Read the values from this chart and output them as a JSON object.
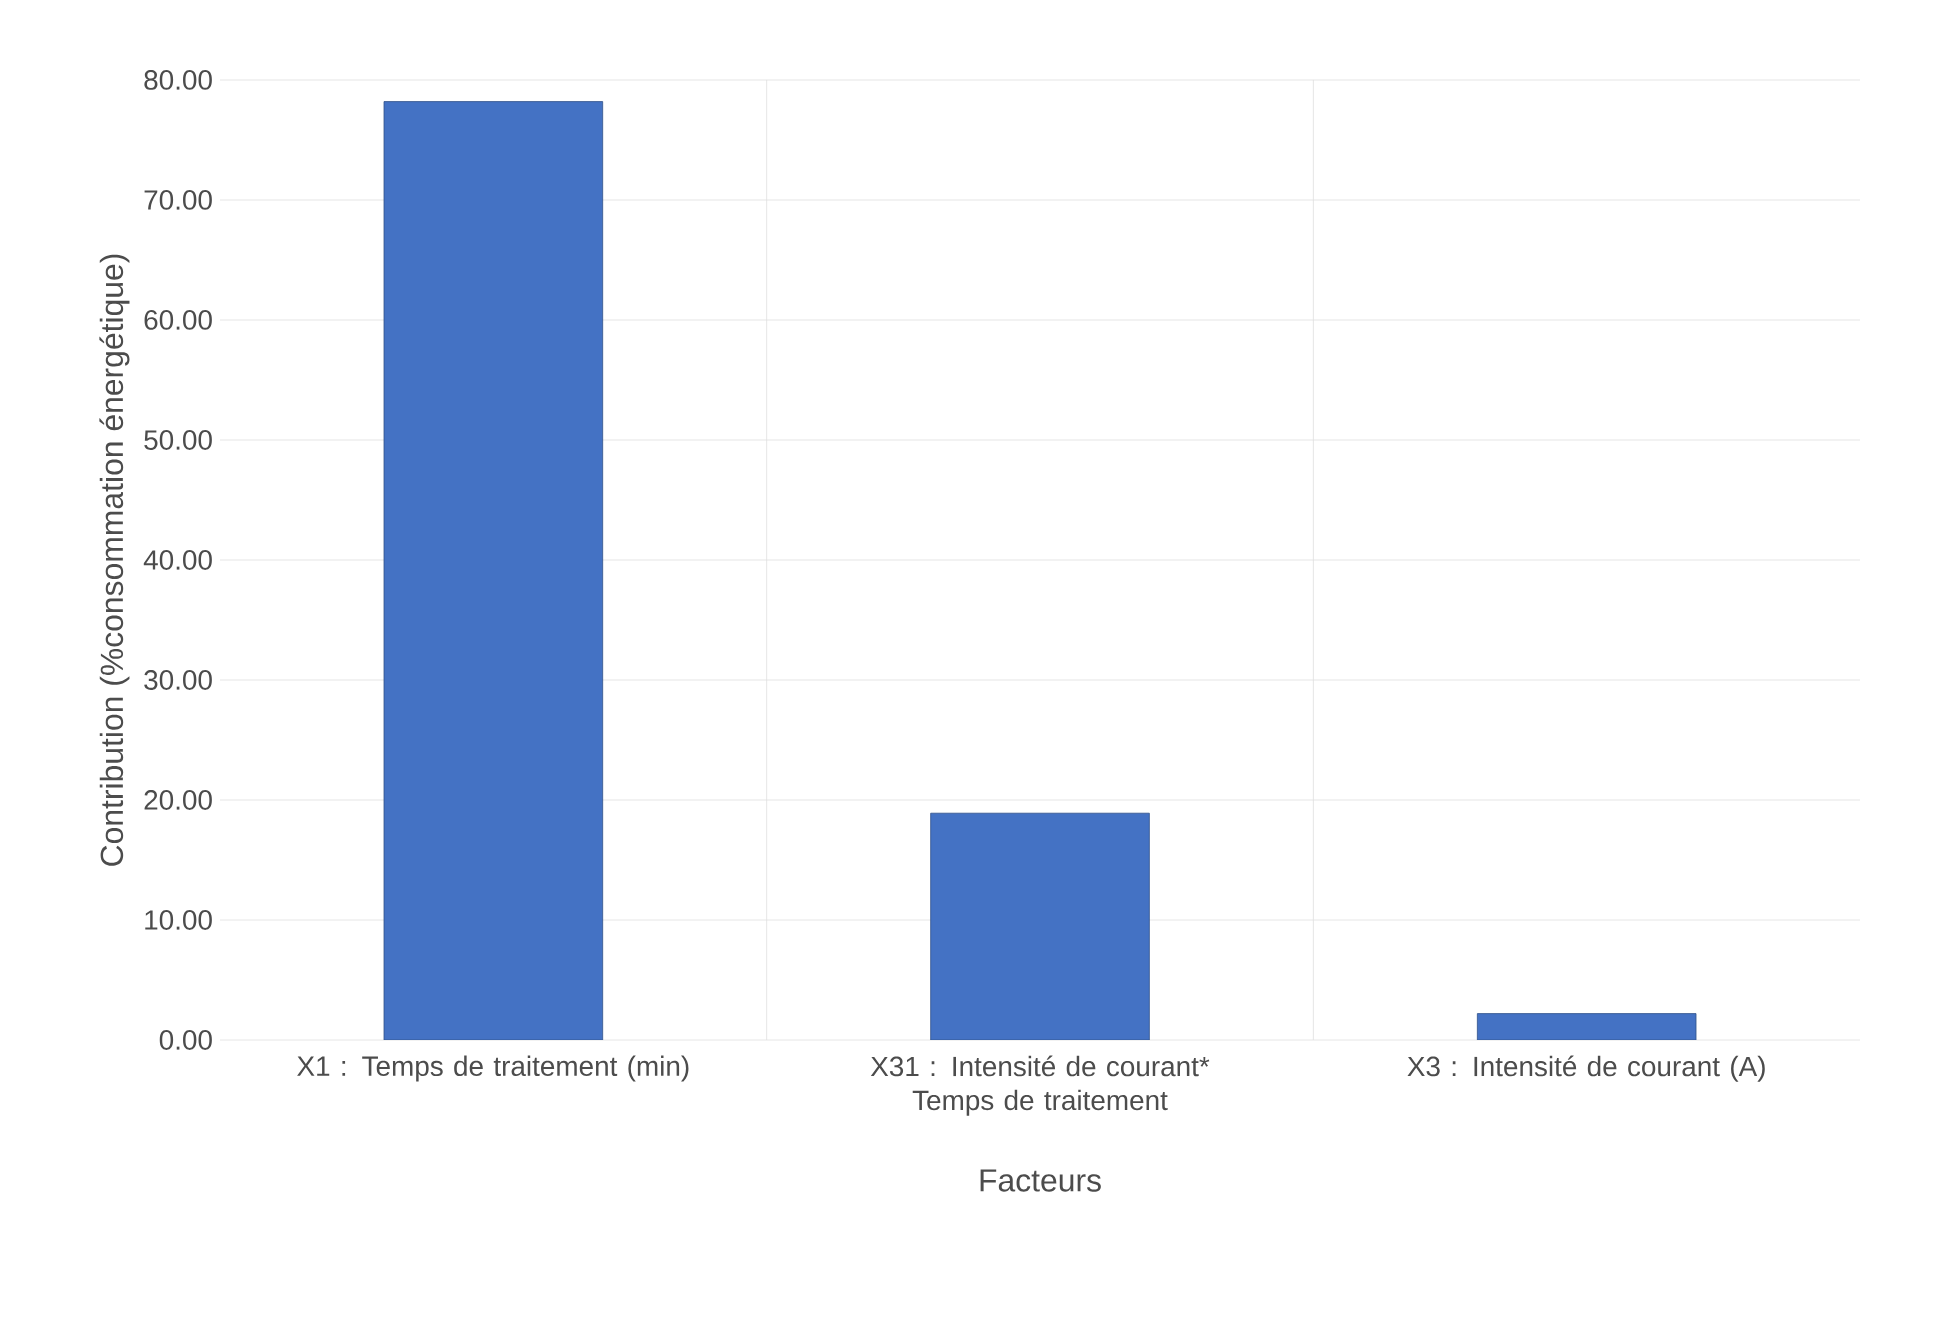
{
  "chart_data": {
    "type": "bar",
    "xlabel": "Facteurs",
    "ylabel": "Contribution (%consommation énergétique)",
    "categories": [
      "X1 : Temps de traitement (min)",
      "X31 : Intensité de courant* Temps de traitement",
      "X3 : Intensité de courant (A)"
    ],
    "values": [
      78.2,
      18.9,
      2.2
    ],
    "color": "#4472c4",
    "ylim": [
      0,
      80
    ],
    "yticks": [
      {
        "value": 0,
        "label": "0.00"
      },
      {
        "value": 10,
        "label": "10.00"
      },
      {
        "value": 20,
        "label": "20.00"
      },
      {
        "value": 30,
        "label": "30.00"
      },
      {
        "value": 40,
        "label": "40.00"
      },
      {
        "value": 50,
        "label": "50.00"
      },
      {
        "value": 60,
        "label": "60.00"
      },
      {
        "value": 70,
        "label": "70.00"
      },
      {
        "value": 80,
        "label": "80.00"
      }
    ],
    "grid": true
  }
}
